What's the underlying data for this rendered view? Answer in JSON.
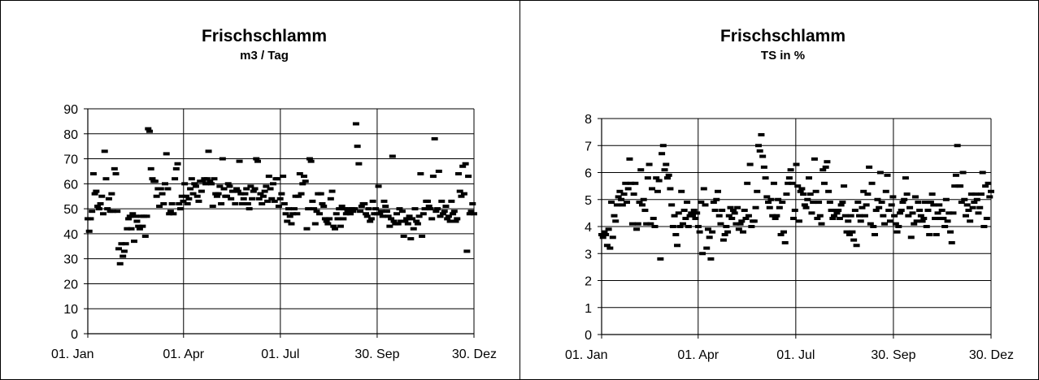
{
  "chart_data": [
    {
      "type": "scatter",
      "title": "Frischschlamm",
      "subtitle": "m3 / Tag",
      "xlabel": "",
      "ylabel": "",
      "ylim": [
        0,
        90
      ],
      "yticks": [
        0,
        10,
        20,
        30,
        40,
        50,
        60,
        70,
        80,
        90
      ],
      "xlim": [
        0,
        363
      ],
      "xticks": [
        {
          "day": 0,
          "label": "01. Jan"
        },
        {
          "day": 90,
          "label": "01. Apr"
        },
        {
          "day": 181,
          "label": "01. Jul"
        },
        {
          "day": 272,
          "label": "30. Sep"
        },
        {
          "day": 363,
          "label": "30. Dez"
        }
      ],
      "grid": "horizontal and vertical at ticks",
      "legend": "none",
      "marker_color": "#000000",
      "y": [
        46,
        41,
        46,
        49,
        64,
        56,
        57,
        51,
        50,
        52,
        55,
        48,
        73,
        62,
        50,
        54,
        49,
        56,
        49,
        66,
        64,
        49,
        34,
        28,
        36,
        31,
        33,
        36,
        42,
        46,
        47,
        42,
        48,
        37,
        47,
        45,
        43,
        42,
        47,
        43,
        47,
        39,
        47,
        82,
        81,
        66,
        62,
        61,
        61,
        55,
        58,
        51,
        58,
        56,
        52,
        60,
        72,
        58,
        48,
        49,
        52,
        48,
        62,
        66,
        68,
        52,
        50,
        55,
        53,
        60,
        55,
        52,
        54,
        58,
        62,
        56,
        60,
        59,
        55,
        53,
        61,
        57,
        61,
        62,
        60,
        62,
        73,
        61,
        60,
        51,
        62,
        56,
        55,
        56,
        59,
        52,
        70,
        58,
        55,
        55,
        60,
        59,
        54,
        57,
        57,
        52,
        58,
        57,
        69,
        56,
        52,
        54,
        56,
        58,
        52,
        50,
        59,
        54,
        57,
        58,
        70,
        69,
        54,
        56,
        52,
        55,
        57,
        59,
        53,
        63,
        58,
        54,
        60,
        53,
        62,
        62,
        51,
        54,
        56,
        63,
        52,
        48,
        45,
        50,
        47,
        44,
        48,
        50,
        55,
        48,
        55,
        64,
        56,
        60,
        63,
        61,
        42,
        50,
        70,
        69,
        53,
        50,
        44,
        49,
        56,
        48,
        56,
        52,
        51,
        46,
        45,
        44,
        46,
        54,
        57,
        43,
        42,
        48,
        46,
        50,
        43,
        51,
        46,
        50,
        48,
        49,
        50,
        48,
        50,
        49,
        50,
        84,
        75,
        68,
        49,
        51,
        52,
        52,
        48,
        47,
        50,
        45,
        46,
        53,
        48,
        50,
        48,
        59,
        48,
        49,
        47,
        53,
        51,
        49,
        47,
        43,
        46,
        71,
        45,
        44,
        48,
        44,
        50,
        45,
        49,
        39,
        45,
        46,
        44,
        47,
        38,
        46,
        42,
        50,
        45,
        44,
        47,
        64,
        39,
        48,
        50,
        53,
        53,
        51,
        50,
        46,
        63,
        78,
        49,
        50,
        65,
        47,
        53,
        48,
        49,
        51,
        46,
        47,
        45,
        53,
        48,
        49,
        45,
        46,
        64,
        57,
        55,
        67,
        56,
        68,
        33,
        63,
        48,
        49,
        52,
        48
      ]
    },
    {
      "type": "scatter",
      "title": "Frischschlamm",
      "subtitle": "TS in %",
      "xlabel": "",
      "ylabel": "",
      "ylim": [
        0,
        8
      ],
      "yticks": [
        0,
        1,
        2,
        3,
        4,
        5,
        6,
        7,
        8
      ],
      "xlim": [
        0,
        363
      ],
      "xticks": [
        {
          "day": 0,
          "label": "01. Jan"
        },
        {
          "day": 90,
          "label": "01. Apr"
        },
        {
          "day": 181,
          "label": "01. Jul"
        },
        {
          "day": 272,
          "label": "30. Sep"
        },
        {
          "day": 363,
          "label": "30. Dez"
        }
      ],
      "grid": "horizontal and vertical at ticks",
      "legend": "none",
      "marker_color": "#000000",
      "y": [
        3.7,
        3.6,
        3.8,
        3.7,
        3.3,
        3.9,
        3.2,
        4.9,
        3.6,
        4.4,
        4.2,
        4.8,
        5.1,
        5.3,
        5.0,
        4.8,
        5.2,
        5.6,
        4.9,
        5.4,
        6.5,
        5.6,
        4.1,
        5.2,
        5.6,
        3.9,
        4.1,
        4.9,
        6.1,
        4.8,
        5.0,
        4.6,
        4.1,
        5.8,
        6.3,
        4.1,
        5.4,
        4.3,
        4.0,
        5.8,
        5.3,
        5.7,
        2.8,
        6.7,
        7.0,
        6.1,
        6.3,
        5.8,
        5.9,
        5.4,
        4.8,
        4.0,
        4.4,
        3.7,
        3.3,
        4.5,
        4.0,
        5.3,
        4.1,
        4.6,
        4.3,
        4.9,
        4.0,
        4.4,
        4.5,
        4.4,
        4.6,
        4.3,
        4.5,
        4.0,
        3.8,
        4.9,
        3.0,
        5.4,
        4.8,
        3.2,
        3.9,
        3.6,
        2.8,
        3.8,
        4.9,
        4.6,
        5.0,
        5.3,
        4.4,
        4.1,
        4.6,
        3.5,
        3.7,
        4.0,
        3.8,
        4.4,
        4.7,
        4.3,
        4.6,
        4.5,
        4.1,
        4.7,
        3.9,
        4.1,
        4.2,
        3.8,
        4.6,
        4.3,
        5.6,
        4.4,
        6.3,
        4.0,
        4.2,
        4.2,
        4.7,
        5.3,
        7.0,
        6.8,
        7.4,
        6.6,
        6.2,
        5.8,
        5.1,
        4.9,
        4.7,
        5.0,
        4.4,
        5.6,
        4.3,
        4.4,
        5.0,
        4.7,
        3.7,
        4.9,
        3.8,
        3.4,
        5.2,
        5.6,
        5.8,
        6.1,
        5.6,
        4.3,
        4.6,
        6.3,
        5.5,
        4.2,
        5.3,
        5.4,
        5.2,
        4.8,
        4.7,
        5.0,
        5.8,
        5.2,
        4.5,
        4.9,
        6.5,
        5.3,
        4.3,
        4.9,
        4.4,
        4.1,
        6.1,
        5.6,
        6.2,
        6.4,
        5.3,
        4.9,
        4.6,
        4.3,
        4.4,
        4.6,
        4.5,
        4.6,
        4.3,
        4.8,
        4.9,
        5.5,
        4.4,
        3.8,
        4.2,
        3.7,
        4.4,
        3.8,
        3.5,
        4.6,
        3.3,
        4.9,
        4.4,
        4.2,
        4.7,
        5.3,
        4.4,
        4.8,
        5.2,
        6.2,
        4.1,
        5.6,
        4.0,
        3.7,
        4.6,
        5.0,
        4.7,
        6.0,
        4.9,
        4.4,
        4.1,
        5.3,
        5.9,
        4.6,
        4.2,
        4.8,
        5.1,
        4.4,
        4.1,
        3.8,
        4.0,
        4.5,
        4.6,
        4.9,
        5.0,
        5.8,
        5.2,
        4.4,
        4.7,
        3.6,
        4.5,
        4.1,
        5.1,
        4.2,
        4.9,
        4.6,
        4.4,
        4.2,
        4.3,
        4.9,
        4.0,
        4.6,
        3.7,
        4.9,
        5.2,
        4.8,
        4.3,
        3.7,
        4.5,
        4.8,
        4.3,
        4.6,
        4.3,
        4.0,
        5.0,
        4.2,
        4.5,
        3.8,
        3.4,
        4.5,
        5.5,
        5.9,
        7.0,
        5.5,
        5.5,
        4.9,
        6.0,
        5.0,
        4.4,
        4.8,
        4.6,
        4.2,
        5.2,
        4.7,
        4.9,
        5.2,
        5.0,
        4.5,
        4.7,
        5.2,
        6.0,
        4.0,
        5.5,
        4.3,
        5.6,
        5.1,
        5.3
      ]
    }
  ]
}
